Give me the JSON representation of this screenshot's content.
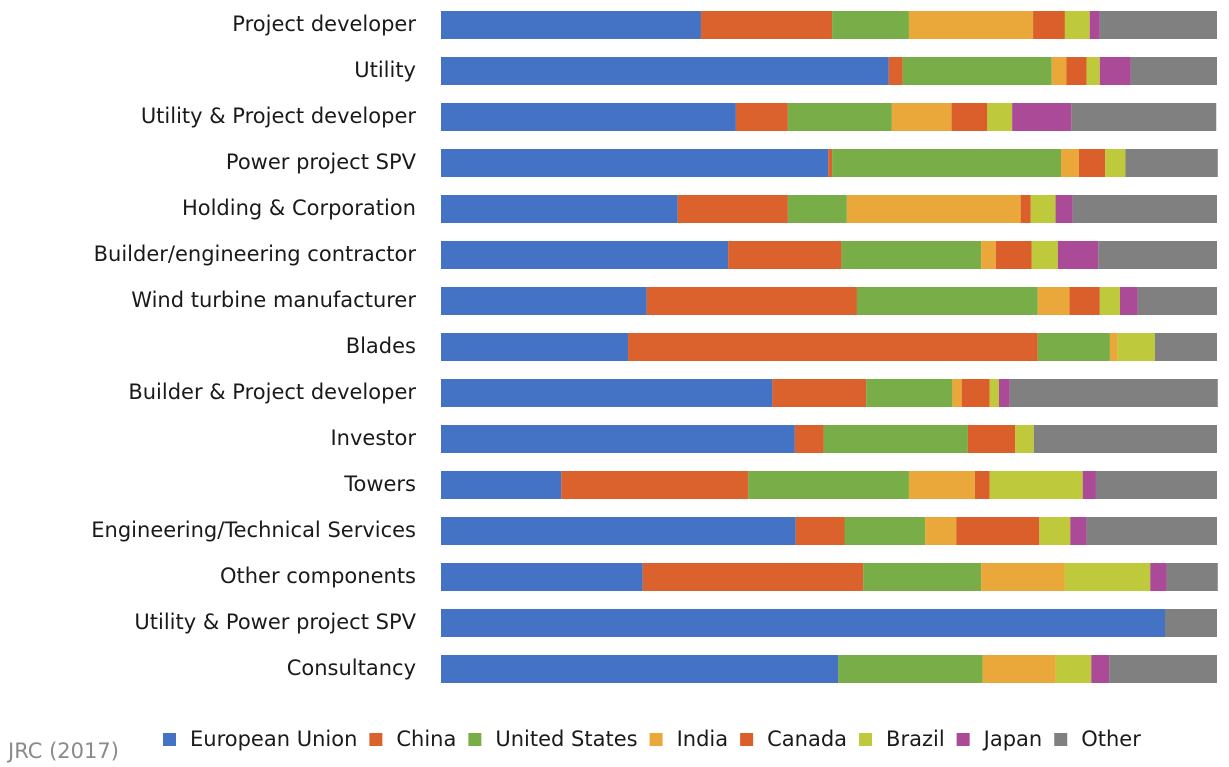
{
  "chart_data": {
    "type": "stacked-barh",
    "source": "JRC (2017)",
    "xlim": [
      0,
      100
    ],
    "categories": [
      "Project developer",
      "Utility",
      "Utility & Project developer",
      "Power project SPV",
      "Holding & Corporation",
      "Builder/engineering contractor",
      "Wind turbine manufacturer",
      "Blades",
      "Builder & Project developer",
      "Investor",
      "Towers",
      "Engineering/Technical Services",
      "Other components",
      "Utility & Power project SPV",
      "Consultancy"
    ],
    "series": [
      {
        "name": "European Union",
        "color": "#4472c4",
        "values": [
          33.5,
          57.7,
          38.0,
          49.9,
          30.5,
          37.0,
          26.5,
          24.1,
          42.7,
          45.6,
          15.5,
          45.7,
          26.0,
          93.3,
          51.2
        ]
      },
      {
        "name": "China",
        "color": "#db622c",
        "values": [
          16.9,
          1.8,
          6.7,
          0.5,
          14.2,
          14.6,
          27.1,
          52.8,
          12.1,
          3.7,
          24.1,
          6.3,
          28.4,
          0,
          0
        ]
      },
      {
        "name": "United States",
        "color": "#79ad47",
        "values": [
          9.9,
          19.2,
          13.4,
          29.5,
          7.6,
          18.0,
          23.3,
          9.3,
          11.1,
          18.6,
          20.7,
          10.4,
          15.2,
          0,
          18.6
        ]
      },
      {
        "name": "India",
        "color": "#eaa83a",
        "values": [
          16.0,
          1.9,
          7.7,
          2.3,
          22.4,
          1.9,
          4.1,
          1.0,
          1.2,
          0,
          8.5,
          4.0,
          10.8,
          0,
          9.4
        ]
      },
      {
        "name": "Canada",
        "color": "#da5f2a",
        "values": [
          4.1,
          2.6,
          4.6,
          3.4,
          1.3,
          4.6,
          3.9,
          0,
          3.6,
          6.1,
          1.9,
          10.7,
          0,
          0,
          0
        ]
      },
      {
        "name": "Brazil",
        "color": "#bec93b",
        "values": [
          3.2,
          1.7,
          3.2,
          2.6,
          3.2,
          3.4,
          2.6,
          4.8,
          1.2,
          2.4,
          12.0,
          4.0,
          11.0,
          0,
          4.6
        ]
      },
      {
        "name": "Japan",
        "color": "#ab4b98",
        "values": [
          1.3,
          4.0,
          7.6,
          0,
          2.2,
          5.2,
          2.3,
          0,
          1.4,
          0,
          1.7,
          2.1,
          2.1,
          0,
          2.3
        ]
      },
      {
        "name": "Other",
        "color": "#808080",
        "values": [
          15.1,
          11.1,
          18.7,
          11.9,
          18.6,
          15.3,
          10.2,
          8.0,
          26.8,
          23.6,
          15.6,
          16.8,
          6.6,
          6.7,
          13.9
        ]
      }
    ]
  }
}
